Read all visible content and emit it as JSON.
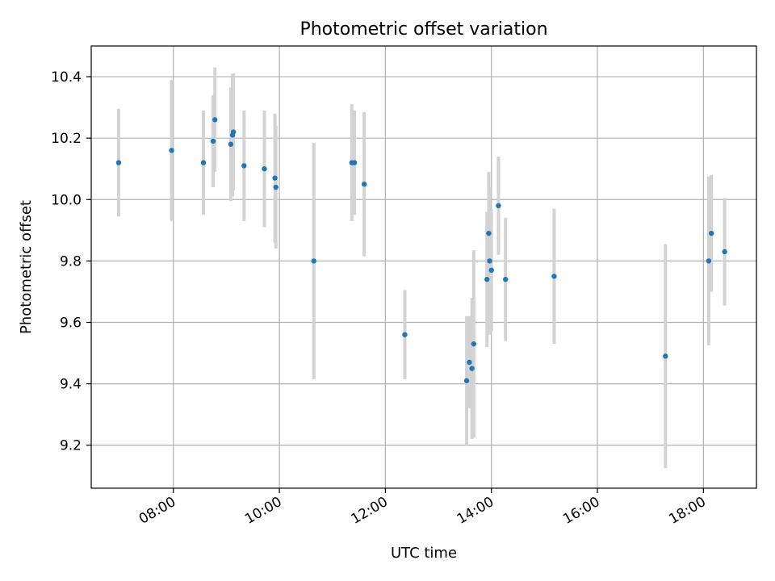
{
  "chart_data": {
    "type": "scatter",
    "title": "Photometric offset variation",
    "xlabel": "UTC time",
    "ylabel": "Photometric offset",
    "x_unit": "hours (UTC)",
    "xlim": [
      6.45,
      19.0
    ],
    "ylim": [
      9.06,
      10.5
    ],
    "x_ticks": [
      {
        "value": 8,
        "label": "08:00"
      },
      {
        "value": 10,
        "label": "10:00"
      },
      {
        "value": 12,
        "label": "12:00"
      },
      {
        "value": 14,
        "label": "14:00"
      },
      {
        "value": 16,
        "label": "16:00"
      },
      {
        "value": 18,
        "label": "18:00"
      }
    ],
    "y_ticks": [
      {
        "value": 9.2,
        "label": "9.2"
      },
      {
        "value": 9.4,
        "label": "9.4"
      },
      {
        "value": 9.6,
        "label": "9.6"
      },
      {
        "value": 9.8,
        "label": "9.8"
      },
      {
        "value": 10.0,
        "label": "10.0"
      },
      {
        "value": 10.2,
        "label": "10.2"
      },
      {
        "value": 10.4,
        "label": "10.4"
      }
    ],
    "grid": true,
    "point_color": "#1f77b4",
    "errorbar_color": "#d3d3d3",
    "points": [
      {
        "x": "06:58",
        "y": 10.12,
        "err": 0.175
      },
      {
        "x": "07:58",
        "y": 10.16,
        "err": 0.23
      },
      {
        "x": "08:34",
        "y": 10.12,
        "err": 0.17
      },
      {
        "x": "08:45",
        "y": 10.19,
        "err": 0.15
      },
      {
        "x": "08:47",
        "y": 10.26,
        "err": 0.17
      },
      {
        "x": "09:05",
        "y": 10.18,
        "err": 0.185
      },
      {
        "x": "09:07",
        "y": 10.21,
        "err": 0.2
      },
      {
        "x": "09:08",
        "y": 10.22,
        "err": 0.19
      },
      {
        "x": "09:20",
        "y": 10.11,
        "err": 0.18
      },
      {
        "x": "09:43",
        "y": 10.1,
        "err": 0.19
      },
      {
        "x": "09:55",
        "y": 10.07,
        "err": 0.21
      },
      {
        "x": "09:56",
        "y": 10.04,
        "err": 0.2
      },
      {
        "x": "10:39",
        "y": 9.8,
        "err": 0.385
      },
      {
        "x": "11:22",
        "y": 10.12,
        "err": 0.19
      },
      {
        "x": "11:25",
        "y": 10.12,
        "err": 0.17
      },
      {
        "x": "11:36",
        "y": 10.05,
        "err": 0.235
      },
      {
        "x": "12:22",
        "y": 9.56,
        "err": 0.145
      },
      {
        "x": "13:32",
        "y": 9.41,
        "err": 0.21
      },
      {
        "x": "13:35",
        "y": 9.47,
        "err": 0.15
      },
      {
        "x": "13:38",
        "y": 9.45,
        "err": 0.23
      },
      {
        "x": "13:40",
        "y": 9.53,
        "err": 0.305
      },
      {
        "x": "13:55",
        "y": 9.74,
        "err": 0.22
      },
      {
        "x": "13:57",
        "y": 9.89,
        "err": 0.2
      },
      {
        "x": "13:58",
        "y": 9.8,
        "err": 0.24
      },
      {
        "x": "14:00",
        "y": 9.77,
        "err": 0.2
      },
      {
        "x": "14:08",
        "y": 9.98,
        "err": 0.16
      },
      {
        "x": "14:16",
        "y": 9.74,
        "err": 0.2
      },
      {
        "x": "15:11",
        "y": 9.75,
        "err": 0.22
      },
      {
        "x": "17:17",
        "y": 9.49,
        "err": 0.365
      },
      {
        "x": "18:06",
        "y": 9.8,
        "err": 0.275
      },
      {
        "x": "18:09",
        "y": 9.89,
        "err": 0.19
      },
      {
        "x": "18:24",
        "y": 9.83,
        "err": 0.175
      }
    ]
  }
}
